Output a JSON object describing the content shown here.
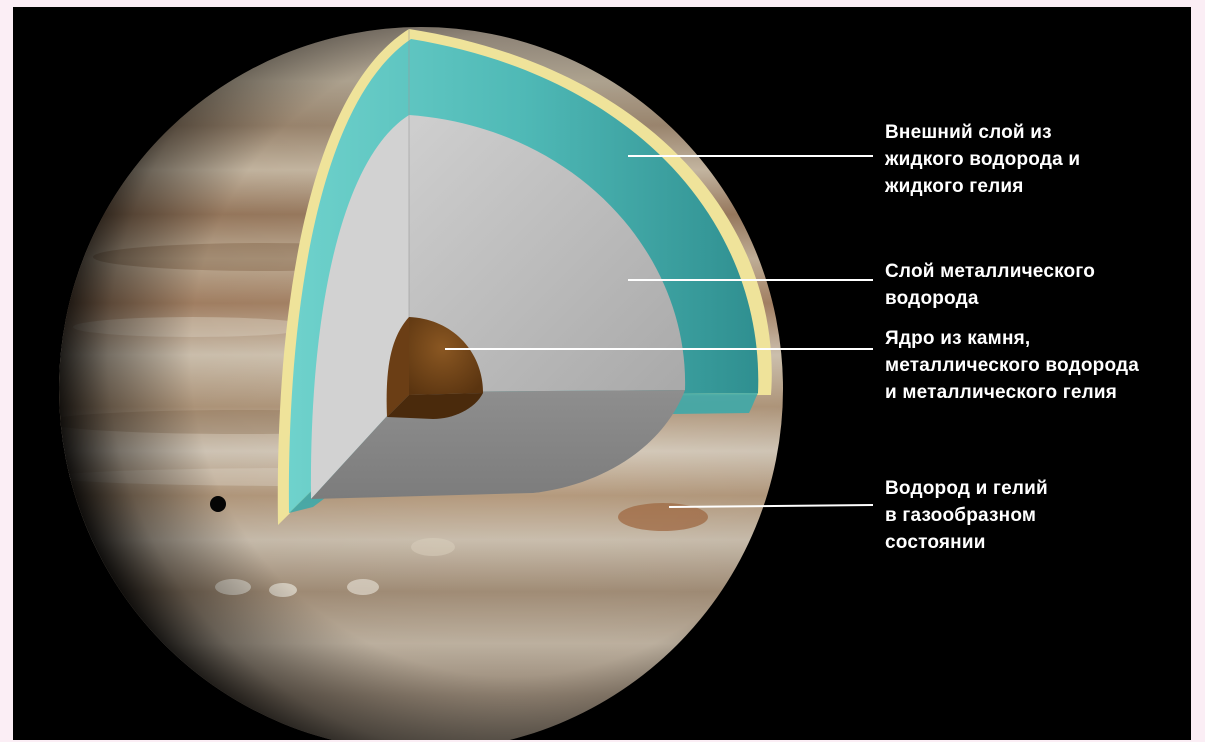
{
  "labels": {
    "outer_layer": "Внешний слой из\nжидкого водорода и\nжидкого гелия",
    "metallic_layer": "Слой металлического\nводорода",
    "core": "Ядро из камня,\nметаллического водорода\nи металлического гелия",
    "gas_layer": "Водород и гелий\nв газообразном\nсостоянии"
  },
  "colors": {
    "page_background": "#fbeef5",
    "stage_background": "#000000",
    "planet_bands": "#b9a58c",
    "outer_layer": "#5ec9c4",
    "rim": "#efe39a",
    "metallic_layer": "#b4b4b4",
    "core": "#7a4a1c",
    "leader_lines": "#ffffff"
  }
}
